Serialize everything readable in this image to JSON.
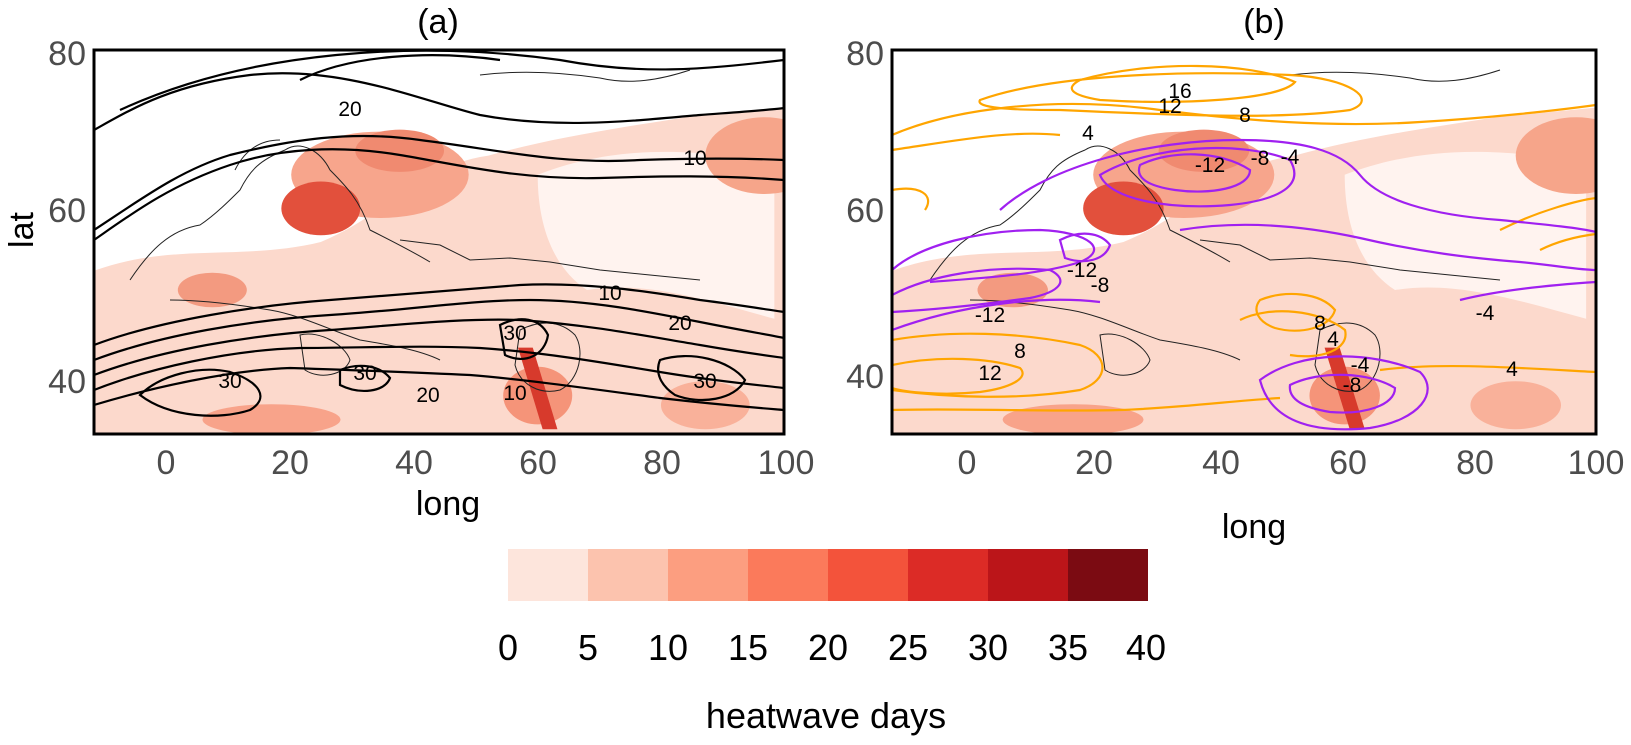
{
  "panel_a": {
    "label": "(a)",
    "xlabel": "long",
    "ylabel": "lat",
    "x_ticks": [
      "0",
      "20",
      "40",
      "60",
      "80",
      "100"
    ],
    "y_ticks": [
      "40",
      "60",
      "80"
    ],
    "contour_labels": [
      "20",
      "10",
      "10",
      "20",
      "30",
      "30",
      "30",
      "20",
      "10",
      "30"
    ]
  },
  "panel_b": {
    "label": "(b)",
    "xlabel": "long",
    "x_ticks": [
      "0",
      "20",
      "40",
      "60",
      "80",
      "100"
    ],
    "y_ticks": [
      "40",
      "60",
      "80"
    ],
    "contour_labels": [
      "16",
      "12",
      "8",
      "4",
      "-12",
      "-8",
      "-4",
      "-12",
      "-8",
      "-12",
      "8",
      "12",
      "8",
      "4",
      "-4",
      "-8",
      "-4",
      "4"
    ]
  },
  "colorbar": {
    "title": "heatwave days",
    "ticks": [
      "0",
      "5",
      "10",
      "15",
      "20",
      "25",
      "30",
      "35",
      "40"
    ],
    "colors": [
      "#fde5dc",
      "#fcc3ae",
      "#fc9e80",
      "#fb7a5b",
      "#f3533b",
      "#dc2b26",
      "#bb1519",
      "#7b0b12"
    ]
  },
  "colors": {
    "contour_a": "#000000",
    "contour_positive": "#ffa500",
    "contour_negative": "#a020f0",
    "land_fill": "#fdebe4"
  }
}
